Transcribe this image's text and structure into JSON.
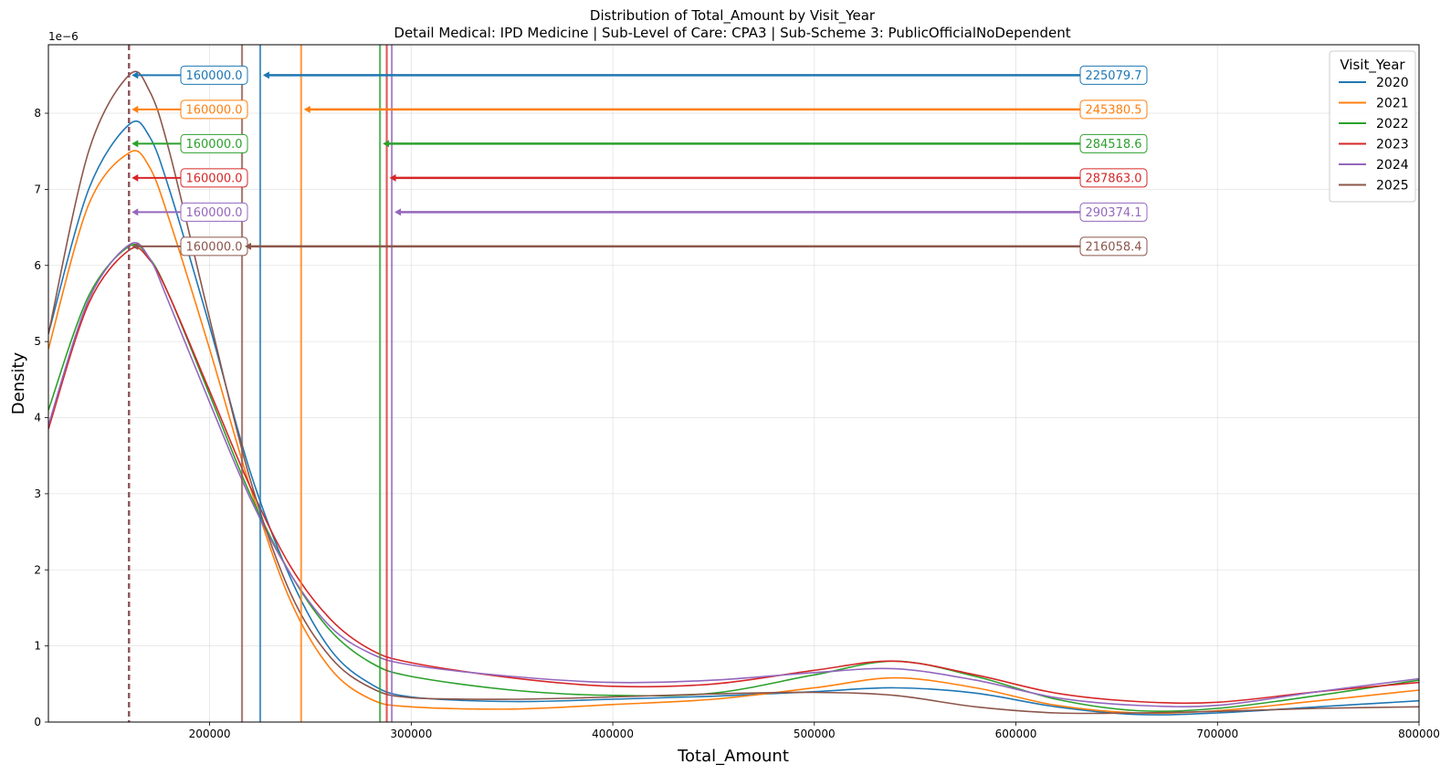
{
  "chart_data": {
    "type": "line",
    "title": "Distribution of Total_Amount by Visit_Year",
    "subtitle": "Detail Medical: IPD Medicine | Sub-Level of Care: CPA3 | Sub-Scheme 3: PublicOfficialNoDependent",
    "xlabel": "Total_Amount",
    "ylabel": "Density",
    "y_offset_label": "1e−6",
    "xlim": [
      120000,
      800000
    ],
    "ylim": [
      0,
      8.9
    ],
    "y_scale_note": "values in units of 1e-6",
    "x_ticks": [
      200000,
      300000,
      400000,
      500000,
      600000,
      700000,
      800000
    ],
    "y_ticks": [
      0,
      1,
      2,
      3,
      4,
      5,
      6,
      7,
      8
    ],
    "grid": true,
    "legend": {
      "title": "Visit_Year",
      "placement": "top-right"
    },
    "series": [
      {
        "name": "2020",
        "color": "#1f77b4",
        "median": 160000.0,
        "median_label": "160000.0",
        "mean": 225079.7,
        "mean_label": "225079.7",
        "x": [
          120000,
          140000,
          160000,
          170000,
          180000,
          200000,
          220000,
          240000,
          260000,
          280000,
          300000,
          350000,
          400000,
          450000,
          500000,
          540000,
          580000,
          620000,
          660000,
          700000,
          750000,
          800000
        ],
        "y": [
          5.1,
          7.0,
          7.85,
          7.7,
          7.0,
          5.2,
          3.3,
          1.9,
          0.95,
          0.5,
          0.33,
          0.27,
          0.3,
          0.34,
          0.4,
          0.45,
          0.38,
          0.2,
          0.1,
          0.12,
          0.2,
          0.28
        ]
      },
      {
        "name": "2021",
        "color": "#ff7f0e",
        "median": 160000.0,
        "median_label": "160000.0",
        "mean": 245380.5,
        "mean_label": "245380.5",
        "x": [
          120000,
          140000,
          160000,
          170000,
          180000,
          200000,
          220000,
          240000,
          260000,
          280000,
          300000,
          350000,
          400000,
          450000,
          500000,
          540000,
          580000,
          620000,
          660000,
          700000,
          750000,
          800000
        ],
        "y": [
          4.9,
          6.8,
          7.48,
          7.3,
          6.6,
          4.9,
          3.1,
          1.6,
          0.7,
          0.3,
          0.2,
          0.17,
          0.23,
          0.3,
          0.45,
          0.58,
          0.45,
          0.22,
          0.12,
          0.15,
          0.28,
          0.42
        ]
      },
      {
        "name": "2022",
        "color": "#2ca02c",
        "median": 160000.0,
        "median_label": "160000.0",
        "mean": 284518.6,
        "mean_label": "284518.6",
        "x": [
          120000,
          140000,
          160000,
          170000,
          180000,
          200000,
          220000,
          240000,
          260000,
          280000,
          300000,
          350000,
          400000,
          450000,
          500000,
          540000,
          580000,
          620000,
          660000,
          700000,
          750000,
          800000
        ],
        "y": [
          4.1,
          5.6,
          6.25,
          6.1,
          5.6,
          4.3,
          3.0,
          1.95,
          1.2,
          0.78,
          0.6,
          0.42,
          0.35,
          0.38,
          0.62,
          0.8,
          0.6,
          0.3,
          0.15,
          0.18,
          0.35,
          0.55
        ]
      },
      {
        "name": "2023",
        "color": "#d62728",
        "median": 160000.0,
        "median_label": "160000.0",
        "mean": 287863.0,
        "mean_label": "287863.0",
        "x": [
          120000,
          140000,
          160000,
          170000,
          180000,
          200000,
          220000,
          240000,
          260000,
          280000,
          300000,
          350000,
          400000,
          450000,
          500000,
          540000,
          580000,
          620000,
          660000,
          700000,
          750000,
          800000
        ],
        "y": [
          3.85,
          5.5,
          6.2,
          6.08,
          5.6,
          4.35,
          3.1,
          2.05,
          1.35,
          0.95,
          0.78,
          0.58,
          0.47,
          0.5,
          0.68,
          0.8,
          0.62,
          0.38,
          0.27,
          0.26,
          0.4,
          0.52
        ]
      },
      {
        "name": "2024",
        "color": "#9467bd",
        "median": 160000.0,
        "median_label": "160000.0",
        "mean": 290374.1,
        "mean_label": "290374.1",
        "x": [
          120000,
          140000,
          160000,
          170000,
          180000,
          200000,
          220000,
          240000,
          260000,
          280000,
          300000,
          350000,
          400000,
          450000,
          500000,
          540000,
          580000,
          620000,
          660000,
          700000,
          750000,
          800000
        ],
        "y": [
          3.9,
          5.55,
          6.27,
          6.1,
          5.5,
          4.2,
          2.95,
          1.95,
          1.25,
          0.9,
          0.75,
          0.6,
          0.52,
          0.55,
          0.65,
          0.7,
          0.55,
          0.32,
          0.22,
          0.22,
          0.4,
          0.57
        ]
      },
      {
        "name": "2025",
        "color": "#8c564b",
        "median": 160000.0,
        "median_label": "160000.0",
        "mean": 216058.4,
        "mean_label": "216058.4",
        "x": [
          120000,
          140000,
          160000,
          170000,
          180000,
          200000,
          220000,
          240000,
          260000,
          280000,
          300000,
          350000,
          400000,
          450000,
          500000,
          540000,
          580000,
          620000,
          660000,
          700000,
          750000,
          800000
        ],
        "y": [
          5.1,
          7.5,
          8.5,
          8.3,
          7.5,
          5.3,
          3.2,
          1.7,
          0.85,
          0.45,
          0.32,
          0.3,
          0.33,
          0.37,
          0.39,
          0.35,
          0.2,
          0.12,
          0.12,
          0.14,
          0.18,
          0.2
        ]
      }
    ]
  }
}
